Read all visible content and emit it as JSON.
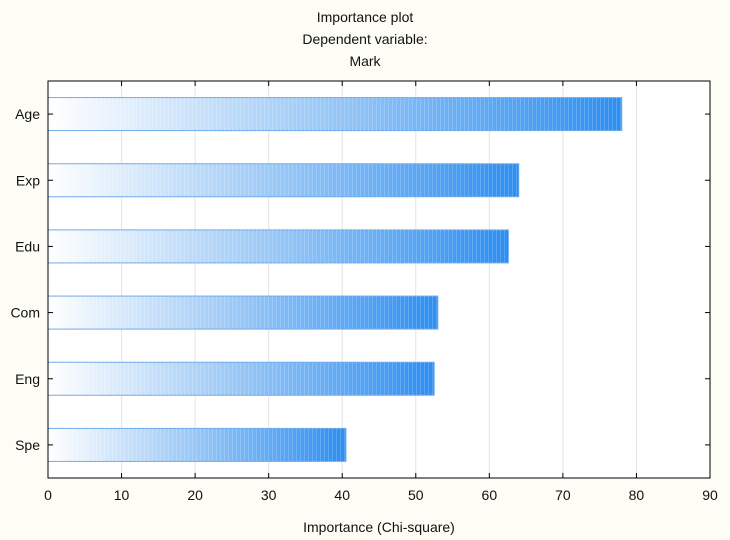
{
  "chart_data": {
    "type": "bar",
    "orientation": "horizontal",
    "title": "Importance plot",
    "subtitle": [
      "Dependent variable:",
      "Mark"
    ],
    "categories": [
      "Age",
      "Exp",
      "Edu",
      "Com",
      "Eng",
      "Spe"
    ],
    "values": [
      78,
      64,
      62.6,
      53,
      52.5,
      40.5
    ],
    "xlabel": "Importance (Chi-square)",
    "ylabel": "",
    "xlim": [
      0,
      90
    ],
    "xticks": [
      0,
      10,
      20,
      30,
      40,
      50,
      60,
      70,
      80,
      90
    ],
    "grid": "vertical",
    "legend": "none",
    "colors": {
      "bar_start": "#ffffff",
      "bar_end": "#2e8ef0",
      "bar_stroke": "#6aaaf0",
      "grid": "#e3e3e3",
      "frame": "#000000",
      "background": "#fdfdf6",
      "plot_background": "#ffffff"
    }
  }
}
